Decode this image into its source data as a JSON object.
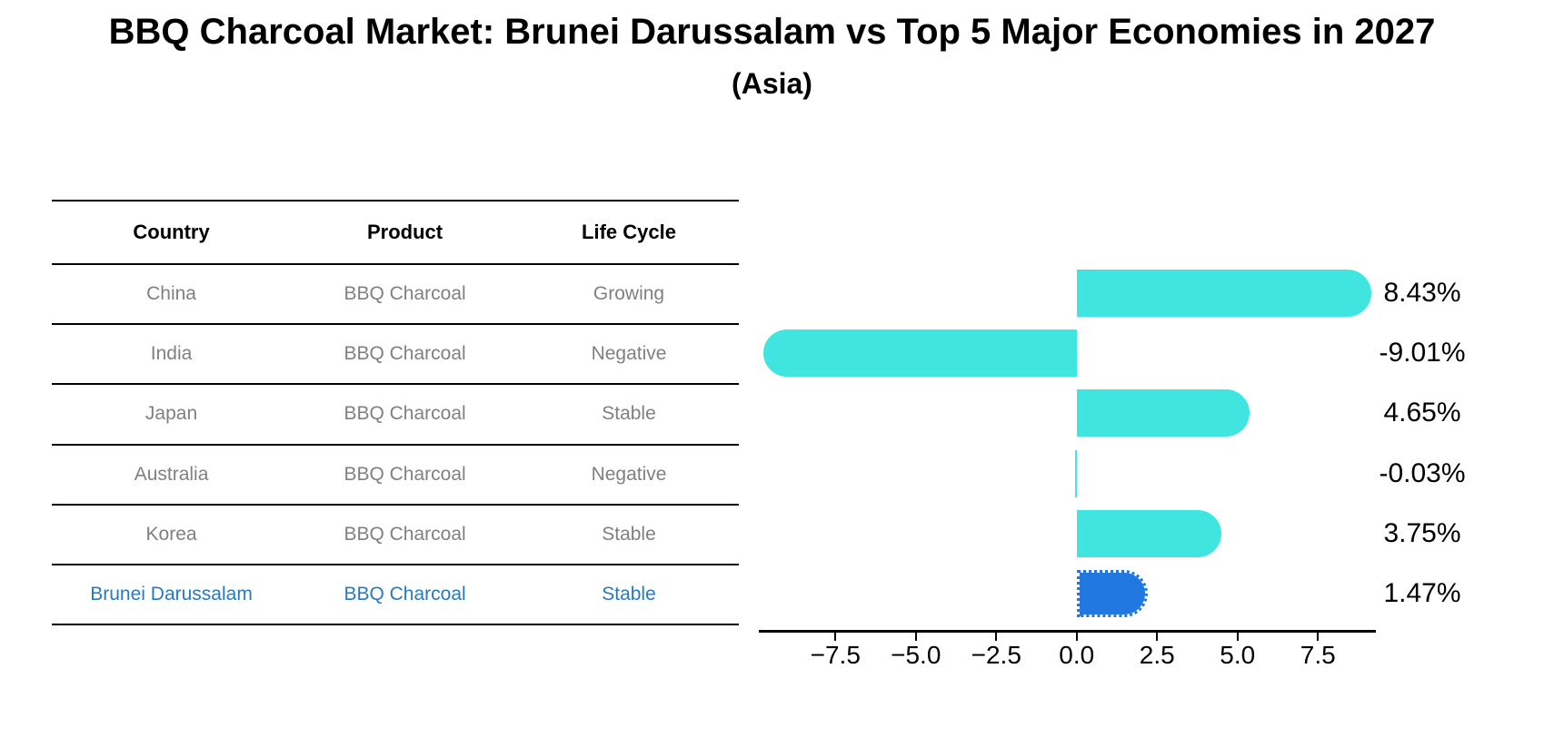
{
  "chart_data": {
    "type": "bar",
    "orientation": "horizontal",
    "title": "BBQ Charcoal Market: Brunei Darussalam vs Top 5 Major Economies in 2027",
    "subtitle": "(Asia)",
    "categories": [
      "China",
      "India",
      "Japan",
      "Australia",
      "Korea",
      "Brunei Darussalam"
    ],
    "values": [
      8.43,
      -9.01,
      4.65,
      -0.03,
      3.75,
      1.47
    ],
    "value_labels": [
      "8.43%",
      "-9.01%",
      "4.65%",
      "-0.03%",
      "3.75%",
      "1.47%"
    ],
    "x_tick_values": [
      -7.5,
      -5.0,
      -2.5,
      0.0,
      2.5,
      5.0,
      7.5
    ],
    "x_tick_labels": [
      "−7.5",
      "−5.0",
      "−2.5",
      "0.0",
      "2.5",
      "5.0",
      "7.5"
    ],
    "xlim": [
      -9.88,
      9.3
    ],
    "xlabel": "",
    "ylabel": "",
    "grid": false,
    "legend": false,
    "bar_color": "#3FE5DE",
    "highlight_index": 5,
    "highlight_bar_color": "#2078E0",
    "highlight_bar_edge": "dotted"
  },
  "table": {
    "headers": [
      "Country",
      "Product",
      "Life Cycle"
    ],
    "rows": [
      {
        "country": "China",
        "product": "BBQ Charcoal",
        "life_cycle": "Growing"
      },
      {
        "country": "India",
        "product": "BBQ Charcoal",
        "life_cycle": "Negative"
      },
      {
        "country": "Japan",
        "product": "BBQ Charcoal",
        "life_cycle": "Stable"
      },
      {
        "country": "Australia",
        "product": "BBQ Charcoal",
        "life_cycle": "Negative"
      },
      {
        "country": "Korea",
        "product": "BBQ Charcoal",
        "life_cycle": "Stable"
      },
      {
        "country": "Brunei Darussalam",
        "product": "BBQ Charcoal",
        "life_cycle": "Stable"
      }
    ],
    "highlight_row_index": 5
  },
  "colors": {
    "background": "#FFFFFF",
    "table_text": "#808080",
    "table_header_text": "#000000",
    "highlight_text": "#2879BE",
    "axis_text": "#000000",
    "line": "#000000"
  }
}
